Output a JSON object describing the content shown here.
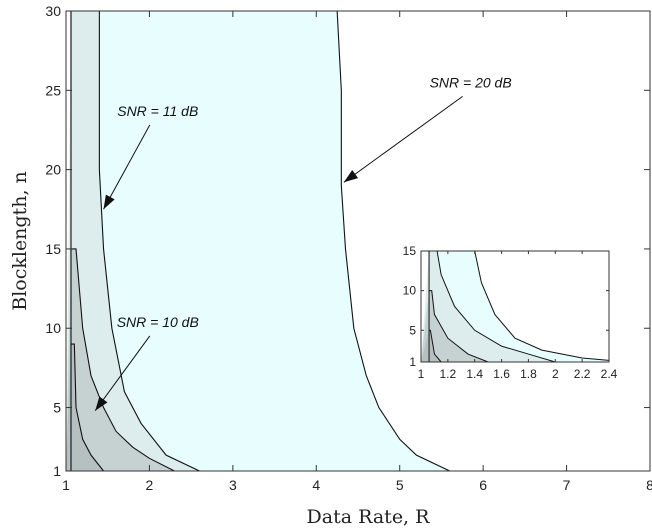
{
  "chart_data": [
    {
      "type": "area",
      "title": "",
      "xlabel": "Data Rate, R",
      "ylabel": "Blocklength, n",
      "xlim": [
        1,
        8
      ],
      "ylim": [
        1,
        30
      ],
      "xticks": [
        1,
        2,
        3,
        4,
        5,
        6,
        7,
        8
      ],
      "yticks": [
        1,
        5,
        10,
        15,
        20,
        25,
        30
      ],
      "grid": false,
      "series": [
        {
          "name": "SNR = 20 dB",
          "fill": "#e8fdfd",
          "x": [
            1.06,
            4.25,
            4.3,
            4.3,
            4.35,
            4.45,
            4.6,
            4.75,
            5.0,
            5.2,
            5.6
          ],
          "y": [
            30,
            30,
            25,
            19,
            15,
            10,
            7,
            5,
            3,
            2,
            1
          ]
        },
        {
          "name": "SNR = 11 dB",
          "fill": "#ddeded",
          "x": [
            1.06,
            1.4,
            1.4,
            1.45,
            1.55,
            1.7,
            1.9,
            2.2,
            2.6
          ],
          "y": [
            30,
            30,
            20,
            15,
            10,
            6,
            4,
            2,
            1
          ]
        },
        {
          "name": "SNR = 10 dB",
          "fill": "#c6d1d1",
          "x": [
            1.06,
            1.12,
            1.2,
            1.3,
            1.45,
            1.6,
            1.8,
            2.0,
            2.3
          ],
          "y": [
            15,
            15,
            10,
            7,
            5,
            3.5,
            2.5,
            1.8,
            1
          ]
        },
        {
          "name": "",
          "fill": "#b7c0c0",
          "x": [
            1.06,
            1.1,
            1.12,
            1.2,
            1.3,
            1.45
          ],
          "y": [
            9,
            9,
            5,
            3,
            2,
            1
          ]
        }
      ],
      "annotations": [
        {
          "text": "SNR = 20 dB",
          "x": 5.85,
          "y": 25.5,
          "arrow_to": [
            4.33,
            19.2
          ]
        },
        {
          "text": "SNR = 11 dB",
          "x": 2.1,
          "y": 23.7,
          "arrow_to": [
            1.45,
            17.5
          ]
        },
        {
          "text": "SNR = 10 dB",
          "x": 2.1,
          "y": 10.4,
          "arrow_to": [
            1.35,
            4.8
          ]
        }
      ]
    },
    {
      "type": "area",
      "title": "",
      "xlim": [
        1,
        2.4
      ],
      "ylim": [
        1,
        15
      ],
      "xticks": [
        1,
        1.2,
        1.4,
        1.6,
        1.8,
        2,
        2.2,
        2.4
      ],
      "yticks": [
        1,
        5,
        10,
        15
      ],
      "grid": false,
      "series": [
        {
          "name": "",
          "fill": "#e8fdfd",
          "x": [
            1.06,
            1.4,
            1.45,
            1.55,
            1.7,
            1.9,
            2.2,
            2.4
          ],
          "y": [
            15,
            15,
            11,
            7,
            4,
            2.5,
            1.5,
            1.2
          ]
        },
        {
          "name": "",
          "fill": "#ddeded",
          "x": [
            1.06,
            1.12,
            1.15,
            1.25,
            1.4,
            1.6,
            1.8,
            2.0
          ],
          "y": [
            15,
            15,
            12,
            8,
            5,
            3,
            2,
            1
          ]
        },
        {
          "name": "",
          "fill": "#c6d1d1",
          "x": [
            1.06,
            1.08,
            1.1,
            1.2,
            1.35,
            1.5
          ],
          "y": [
            10,
            10,
            7,
            4,
            2,
            1
          ]
        },
        {
          "name": "",
          "fill": "#b7c0c0",
          "x": [
            1.06,
            1.07,
            1.1,
            1.15
          ],
          "y": [
            5,
            5,
            2,
            1
          ]
        }
      ]
    }
  ]
}
